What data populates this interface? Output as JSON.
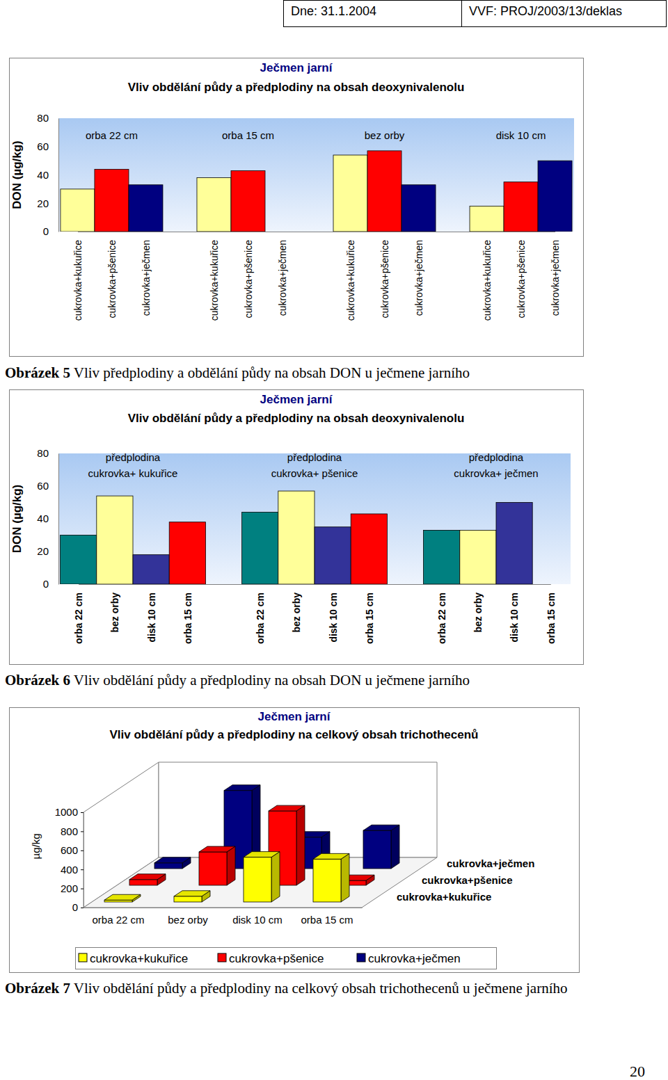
{
  "header": [
    "Dne: 31.1.2004",
    "VVF: PROJ/2003/13/deklas"
  ],
  "captions": [
    {
      "label": "Obrázek 5",
      "text": "Vliv předplodiny a obdělání půdy na obsah DON u ječmene jarního"
    },
    {
      "label": "Obrázek 6",
      "text": "Vliv obdělání půdy a předplodiny na obsah DON u ječmene jarního"
    },
    {
      "label": "Obrázek 7",
      "text": "Vliv obdělání půdy a předplodiny na celkový obsah trichothecenů u ječmene jarního"
    }
  ],
  "page_number": "20",
  "chart_data": [
    {
      "type": "bar",
      "title": "Ječmen jarní",
      "subtitle": "Vliv obdělání půdy a předplodiny na obsah deoxynivalenolu",
      "y_label": "DON (µg/kg)",
      "categories": [
        "cukrovka+kukuřice",
        "cukrovka+pšenice",
        "cukrovka+ječmen",
        "cukrovka+kukuřice",
        "cukrovka+pšenice",
        "cukrovka+ječmen",
        "cukrovka+kukuřice",
        "cukrovka+pšenice",
        "cukrovka+ječmen",
        "cukrovka+kukuřice",
        "cukrovka+pšenice",
        "cukrovka+ječmen"
      ],
      "values": [
        30,
        44,
        33,
        38,
        43,
        null,
        54,
        57,
        33,
        18,
        35,
        50
      ],
      "colors": [
        "#FFFF99",
        "#FF0000",
        "#000080",
        "#FFFF99",
        "#FF0000",
        "#000080",
        "#FFFF99",
        "#FF0000",
        "#000080",
        "#FFFF99",
        "#FF0000",
        "#000080"
      ],
      "annotations": [
        "orba 22 cm",
        "orba 15 cm",
        "bez orby",
        "disk 10 cm"
      ],
      "ylim": [
        0,
        80
      ],
      "yticks": [
        0,
        20,
        40,
        60,
        80
      ],
      "grid": false
    },
    {
      "type": "bar",
      "title": "Ječmen jarní",
      "subtitle": "Vliv obdělání půdy a předplodiny na obsah deoxynivalenolu",
      "y_label": "DON (µg/kg)",
      "categories": [
        "orba 22 cm",
        "bez orby",
        "disk 10 cm",
        "orba 15 cm",
        "orba 22 cm",
        "bez orby",
        "disk 10 cm",
        "orba 15 cm",
        "orba 22 cm",
        "bez orby",
        "disk 10 cm",
        "orba 15 cm"
      ],
      "values": [
        30,
        54,
        18,
        38,
        44,
        57,
        35,
        43,
        33,
        33,
        50,
        null
      ],
      "colors": [
        "#008080",
        "#FFFF99",
        "#333399",
        "#FF0000",
        "#008080",
        "#FFFF99",
        "#333399",
        "#FF0000",
        "#008080",
        "#FFFF99",
        "#333399",
        "#FF0000"
      ],
      "annotations": [
        [
          "předplodina",
          "cukrovka+ kukuřice"
        ],
        [
          "předplodina",
          "cukrovka+ pšenice"
        ],
        [
          "předplodina",
          "cukrovka+ ječmen"
        ]
      ],
      "ylim": [
        0,
        80
      ],
      "yticks": [
        0,
        20,
        40,
        60,
        80
      ],
      "grid": false
    },
    {
      "type": "bar3d",
      "title": "Ječmen jarní",
      "subtitle": "Vliv obdělání půdy a předplodiny na celkový obsah trichothecenů",
      "y_label": "µg/kg",
      "categories": [
        "orba 22 cm",
        "bez orby",
        "disk 10 cm",
        "orba 15 cm"
      ],
      "series": [
        {
          "name": "cukrovka+kukuřice",
          "color": "#FFFF00",
          "values": [
            20,
            60,
            470,
            450
          ]
        },
        {
          "name": "cukrovka+pšenice",
          "color": "#FF0000",
          "values": [
            60,
            350,
            780,
            50
          ]
        },
        {
          "name": "cukrovka+ječmen",
          "color": "#000080",
          "values": [
            60,
            820,
            330,
            400
          ]
        }
      ],
      "ylim": [
        0,
        1000
      ],
      "yticks": [
        0,
        200,
        400,
        600,
        800,
        1000
      ],
      "grid": false,
      "legend": "bottom"
    }
  ]
}
